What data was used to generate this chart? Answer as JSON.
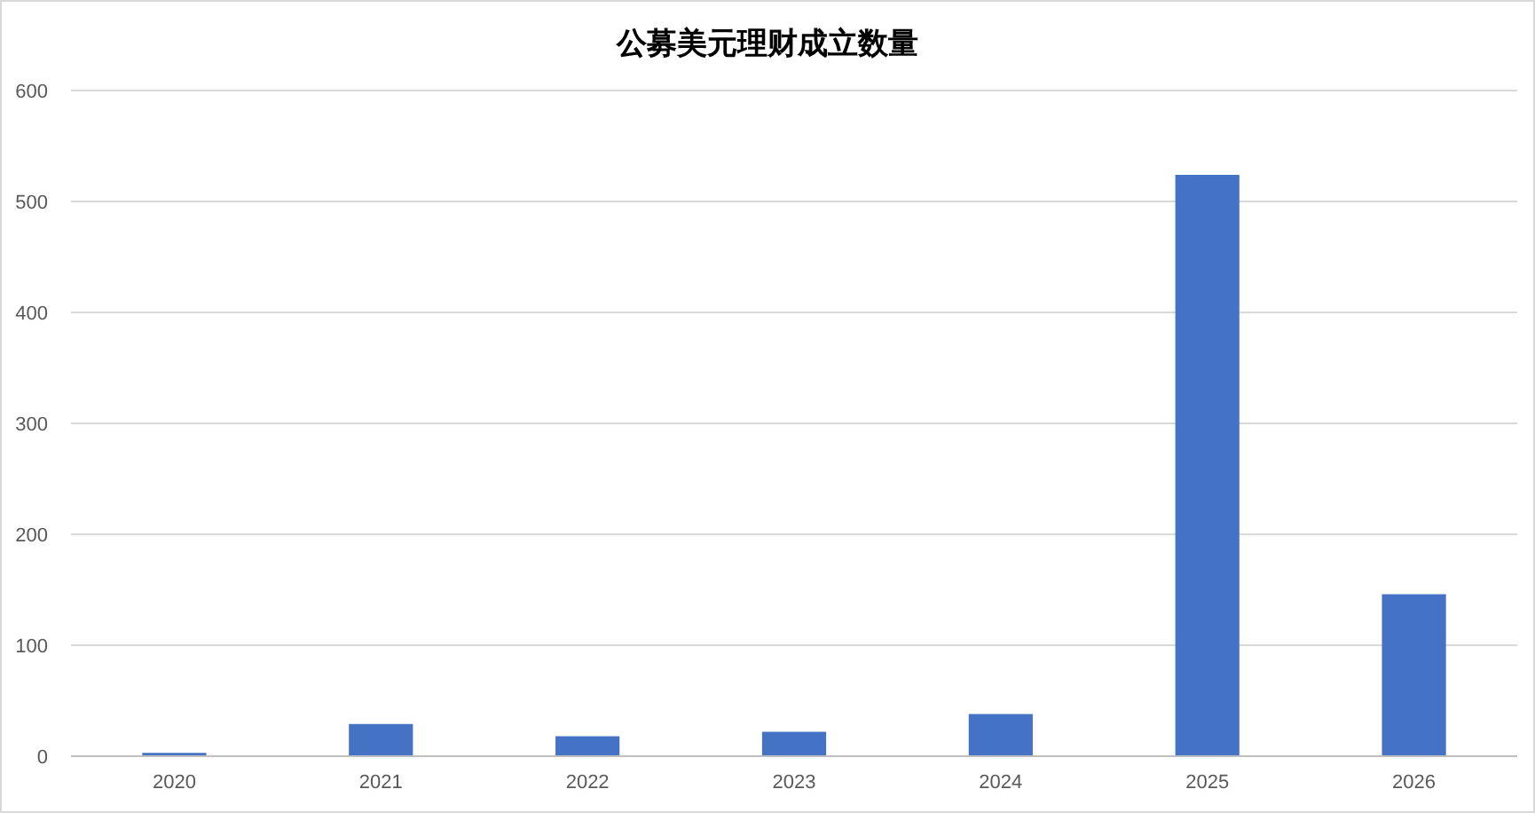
{
  "chart_data": {
    "type": "bar",
    "title": "公募美元理财成立数量",
    "categories": [
      "2020",
      "2021",
      "2022",
      "2023",
      "2024",
      "2025",
      "2026"
    ],
    "values": [
      3,
      29,
      18,
      22,
      38,
      524,
      146
    ],
    "color": "#4472c4",
    "ylim": [
      0,
      600
    ],
    "yticks": [
      0,
      100,
      200,
      300,
      400,
      500,
      600
    ],
    "grid": "y"
  }
}
